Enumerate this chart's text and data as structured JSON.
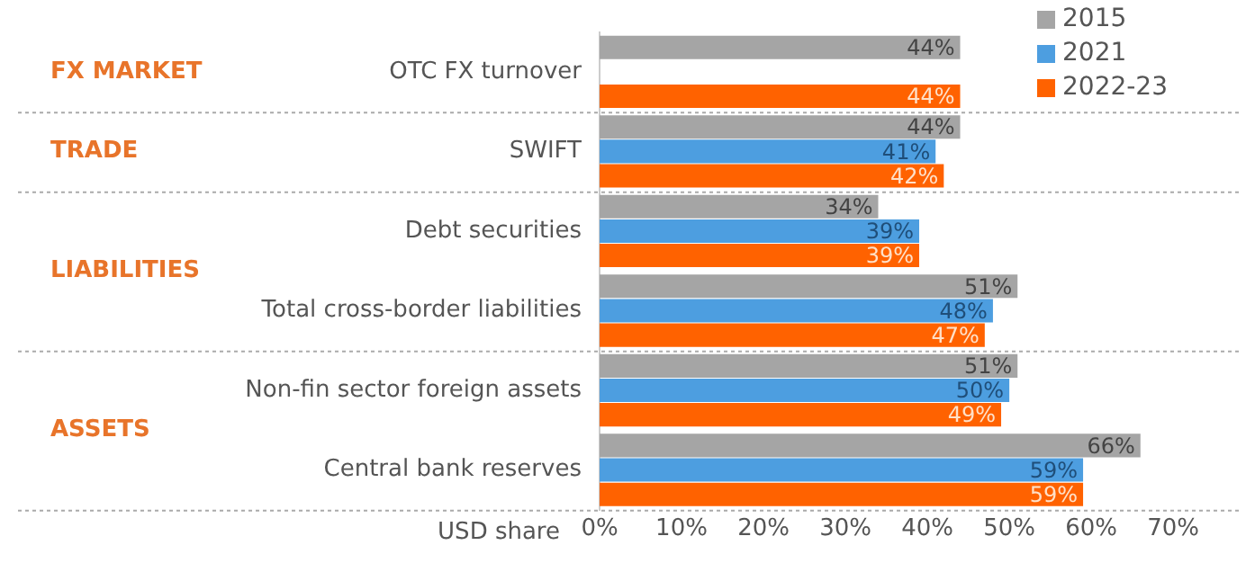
{
  "chart_data": {
    "type": "bar",
    "orientation": "horizontal",
    "xlabel": "USD share",
    "categories": [
      "OTC FX turnover",
      "SWIFT",
      "Debt securities",
      "Total cross-border liabilities",
      "Non-fin sector foreign assets",
      "Central bank reserves"
    ],
    "series": [
      {
        "name": "2015",
        "color": "#a5a5a5",
        "values": [
          44,
          44,
          34,
          51,
          51,
          66
        ],
        "value_labels": [
          "44%",
          "44%",
          "34%",
          "51%",
          "51%",
          "66%"
        ]
      },
      {
        "name": "2021",
        "color": "#4d9ee0",
        "values": [
          null,
          41,
          39,
          48,
          50,
          59
        ],
        "value_labels": [
          null,
          "41%",
          "39%",
          "48%",
          "50%",
          "59%"
        ]
      },
      {
        "name": "2022-23",
        "color": "#ff6200",
        "values": [
          44,
          42,
          39,
          47,
          49,
          59
        ],
        "value_labels": [
          "44%",
          "42%",
          "39%",
          "47%",
          "49%",
          "59%"
        ]
      }
    ],
    "xlim": [
      0,
      78
    ],
    "xticks": [
      {
        "value": 0,
        "label": "0%"
      },
      {
        "value": 10,
        "label": "10%"
      },
      {
        "value": 20,
        "label": "20%"
      },
      {
        "value": 30,
        "label": "30%"
      },
      {
        "value": 40,
        "label": "40%"
      },
      {
        "value": 50,
        "label": "50%"
      },
      {
        "value": 60,
        "label": "60%"
      },
      {
        "value": 70,
        "label": "70%"
      }
    ],
    "annotations": [
      "FX MARKET",
      "TRADE",
      "LIABILITIES",
      "ASSETS"
    ],
    "grid": false,
    "legend": "top right"
  }
}
